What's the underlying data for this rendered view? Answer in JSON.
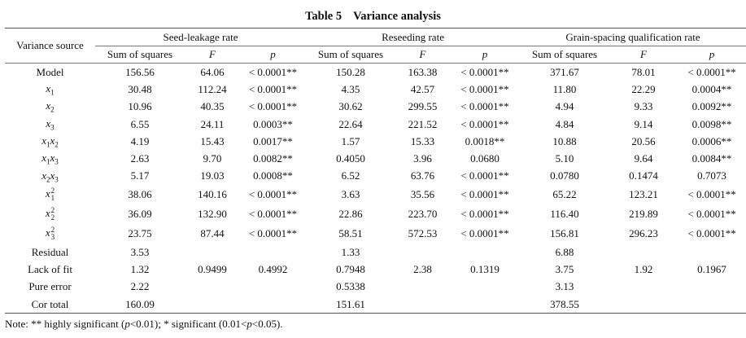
{
  "title": {
    "label": "Table 5",
    "text": "Variance analysis"
  },
  "header": {
    "source": "Variance source",
    "groups": [
      "Seed-leakage rate",
      "Reseeding rate",
      "Grain-spacing qualification rate"
    ],
    "sub": [
      "Sum of squares",
      "F",
      "p"
    ]
  },
  "rows": [
    {
      "source": {
        "text": "Model"
      },
      "cells": [
        "156.56",
        "64.06",
        "< 0.0001**",
        "150.28",
        "163.38",
        "< 0.0001**",
        "371.67",
        "78.01",
        "< 0.0001**"
      ]
    },
    {
      "source": {
        "terms": [
          [
            "x",
            "1"
          ]
        ]
      },
      "cells": [
        "30.48",
        "112.24",
        "< 0.0001**",
        "4.35",
        "42.57",
        "< 0.0001**",
        "11.80",
        "22.29",
        "0.0004**"
      ]
    },
    {
      "source": {
        "terms": [
          [
            "x",
            "2"
          ]
        ]
      },
      "cells": [
        "10.96",
        "40.35",
        "< 0.0001**",
        "30.62",
        "299.55",
        "< 0.0001**",
        "4.94",
        "9.33",
        "0.0092**"
      ]
    },
    {
      "source": {
        "terms": [
          [
            "x",
            "3"
          ]
        ]
      },
      "cells": [
        "6.55",
        "24.11",
        "0.0003**",
        "22.64",
        "221.52",
        "< 0.0001**",
        "4.84",
        "9.14",
        "0.0098**"
      ]
    },
    {
      "source": {
        "terms": [
          [
            "x",
            "1"
          ],
          [
            "x",
            "2"
          ]
        ]
      },
      "cells": [
        "4.19",
        "15.43",
        "0.0017**",
        "1.57",
        "15.33",
        "0.0018**",
        "10.88",
        "20.56",
        "0.0006**"
      ]
    },
    {
      "source": {
        "terms": [
          [
            "x",
            "1"
          ],
          [
            "x",
            "3"
          ]
        ]
      },
      "cells": [
        "2.63",
        "9.70",
        "0.0082**",
        "0.4050",
        "3.96",
        "0.0680",
        "5.10",
        "9.64",
        "0.0084**"
      ]
    },
    {
      "source": {
        "terms": [
          [
            "x",
            "2"
          ],
          [
            "x",
            "3"
          ]
        ]
      },
      "cells": [
        "5.17",
        "19.03",
        "0.0008**",
        "6.52",
        "63.76",
        "< 0.0001**",
        "0.0780",
        "0.1474",
        "0.7073"
      ]
    },
    {
      "source": {
        "terms": [
          [
            "x",
            "1"
          ]
        ],
        "sup": "2"
      },
      "cells": [
        "38.06",
        "140.16",
        "< 0.0001**",
        "3.63",
        "35.56",
        "< 0.0001**",
        "65.22",
        "123.21",
        "< 0.0001**"
      ]
    },
    {
      "source": {
        "terms": [
          [
            "x",
            "2"
          ]
        ],
        "sup": "2"
      },
      "cells": [
        "36.09",
        "132.90",
        "< 0.0001**",
        "22.86",
        "223.70",
        "< 0.0001**",
        "116.40",
        "219.89",
        "< 0.0001**"
      ]
    },
    {
      "source": {
        "terms": [
          [
            "x",
            "3"
          ]
        ],
        "sup": "2"
      },
      "cells": [
        "23.75",
        "87.44",
        "< 0.0001**",
        "58.51",
        "572.53",
        "< 0.0001**",
        "156.81",
        "296.23",
        "< 0.0001**"
      ]
    },
    {
      "source": {
        "text": "Residual"
      },
      "cells": [
        "3.53",
        "",
        "",
        "1.33",
        "",
        "",
        "6.88",
        "",
        ""
      ]
    },
    {
      "source": {
        "text": "Lack of fit"
      },
      "cells": [
        "1.32",
        "0.9499",
        "0.4992",
        "0.7948",
        "2.38",
        "0.1319",
        "3.75",
        "1.92",
        "0.1967"
      ]
    },
    {
      "source": {
        "text": "Pure error"
      },
      "cells": [
        "2.22",
        "",
        "",
        "0.5338",
        "",
        "",
        "3.13",
        "",
        ""
      ]
    },
    {
      "source": {
        "text": "Cor total"
      },
      "cells": [
        "160.09",
        "",
        "",
        "151.61",
        "",
        "",
        "378.55",
        "",
        ""
      ]
    }
  ],
  "note": {
    "prefix": "Note:",
    "a": "** highly significant (",
    "a_p": "p",
    "a2": "<0.01); * significant (0.01<",
    "b_p": "p",
    "b2": "<0.05)."
  }
}
